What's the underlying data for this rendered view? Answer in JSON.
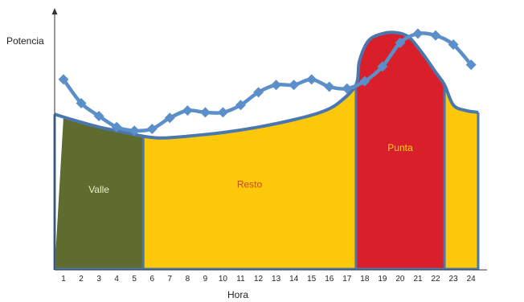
{
  "chart_data": {
    "type": "area",
    "xlabel": "Hora",
    "ylabel": "Potencia",
    "x": [
      1,
      2,
      3,
      4,
      5,
      6,
      7,
      8,
      9,
      10,
      11,
      12,
      13,
      14,
      15,
      16,
      17,
      18,
      19,
      20,
      21,
      22,
      23,
      24
    ],
    "x_tick_labels": [
      "1",
      "2",
      "3",
      "4",
      "5",
      "6",
      "7",
      "8",
      "9",
      "10",
      "11",
      "12",
      "13",
      "14",
      "15",
      "16",
      "17",
      "18",
      "19",
      "20",
      "21",
      "22",
      "23",
      "24"
    ],
    "xlim": [
      0.5,
      25
    ],
    "ylim": [
      0,
      140
    ],
    "colors": {
      "valle": "#5f6b2f",
      "resto": "#fec80a",
      "punta": "#d9202a",
      "outline": "#4a78ae",
      "series_line": "#5b8fc9",
      "text_light": "#e8f0c8",
      "text_resto": "#c44a1d",
      "text_punta": "#ffd21a",
      "axis": "#333333"
    },
    "zones": [
      {
        "label": "Valle",
        "x_start": 1,
        "x_end": 5.5,
        "color_key": "valle",
        "label_x": 3,
        "label_y": 42
      },
      {
        "label": "Resto",
        "x_start": 5.5,
        "x_end": 17.5,
        "color_key": "resto",
        "label_x": 11.5,
        "label_y": 45
      },
      {
        "label": "Punta",
        "x_start": 17.5,
        "x_end": 22.5,
        "color_key": "punta",
        "label_x": 20,
        "label_y": 65
      },
      {
        "label": "",
        "x_start": 22.5,
        "x_end": 24.4,
        "color_key": "resto"
      }
    ],
    "area_curve": [
      [
        0.5,
        85
      ],
      [
        1.5,
        82
      ],
      [
        3,
        78
      ],
      [
        4.5,
        75
      ],
      [
        5.5,
        73
      ],
      [
        6.5,
        72
      ],
      [
        8,
        73
      ],
      [
        10,
        75
      ],
      [
        12,
        78
      ],
      [
        14,
        82
      ],
      [
        15.5,
        86
      ],
      [
        16.5,
        91
      ],
      [
        17.5,
        101
      ],
      [
        17.7,
        114
      ],
      [
        18.2,
        125
      ],
      [
        19,
        129
      ],
      [
        19.8,
        129.5
      ],
      [
        20.5,
        127
      ],
      [
        21.2,
        119
      ],
      [
        22,
        108
      ],
      [
        22.5,
        101
      ],
      [
        23,
        90
      ],
      [
        23.7,
        87
      ],
      [
        24.4,
        86
      ]
    ],
    "series": [
      {
        "type": "line",
        "marker": "diamond",
        "x": [
          1,
          2,
          3,
          4,
          5,
          6,
          7,
          8,
          9,
          10,
          11,
          12,
          13,
          14,
          15,
          16,
          17,
          18,
          19,
          20,
          21,
          22,
          23,
          24
        ],
        "y": [
          104,
          91,
          84,
          78,
          76,
          77,
          83,
          87,
          86,
          86,
          90,
          97,
          101,
          101,
          104,
          100,
          99,
          103,
          111,
          124,
          129,
          128,
          123,
          112
        ]
      }
    ]
  }
}
